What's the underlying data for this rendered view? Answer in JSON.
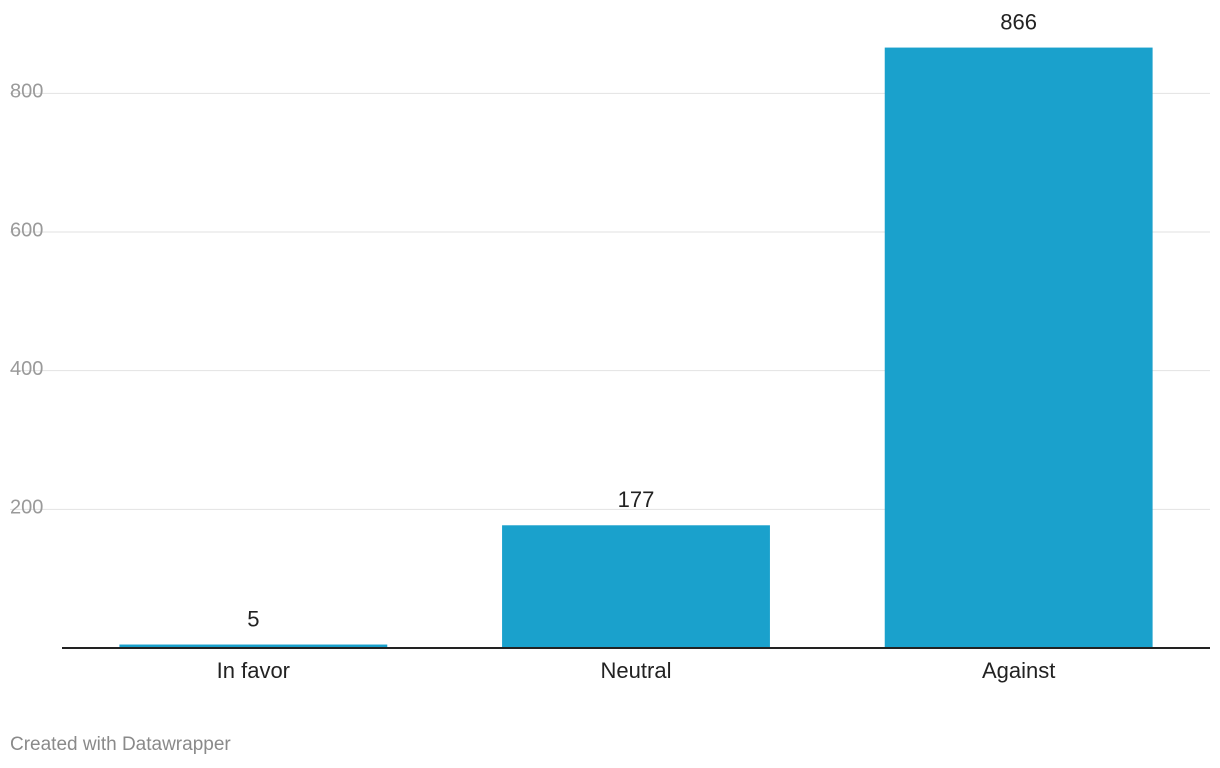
{
  "chart_data": {
    "type": "bar",
    "categories": [
      "In favor",
      "Neutral",
      "Against"
    ],
    "values": [
      5,
      177,
      866
    ],
    "color": "#1aa1cc",
    "ylim": [
      0,
      900
    ],
    "yticks": [
      200,
      400,
      600,
      800
    ],
    "grid": true,
    "credit": "Created with Datawrapper"
  }
}
